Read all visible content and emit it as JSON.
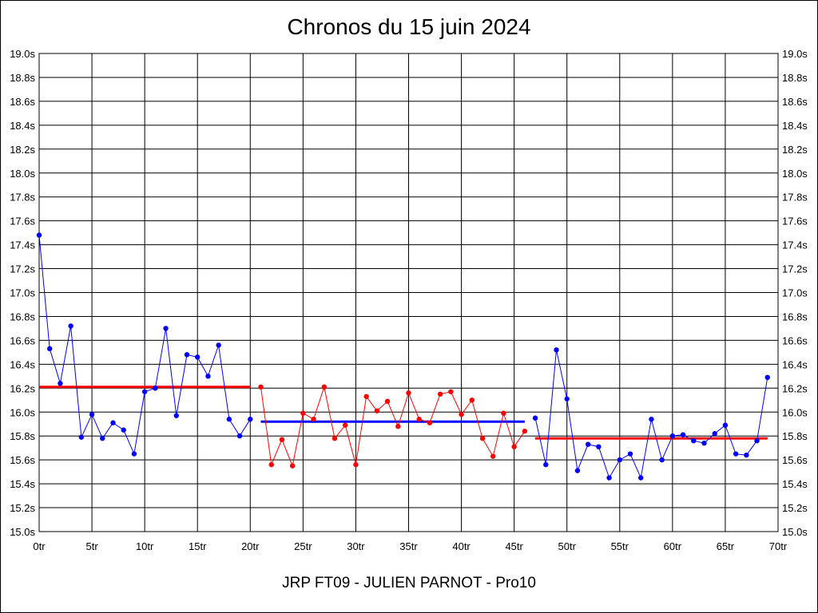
{
  "title": "Chronos du 15 juin 2024",
  "footer": "JRP FT09 - JULIEN PARNOT - Pro10",
  "chart_data": {
    "type": "line",
    "title": "Chronos du 15 juin 2024",
    "xlabel": "",
    "ylabel": "",
    "xlim": [
      0,
      70
    ],
    "ylim": [
      15.0,
      19.0
    ],
    "grid": true,
    "x_ticks": [
      "0tr",
      "5tr",
      "10tr",
      "15tr",
      "20tr",
      "25tr",
      "30tr",
      "35tr",
      "40tr",
      "45tr",
      "50tr",
      "55tr",
      "60tr",
      "65tr",
      "70tr"
    ],
    "y_ticks": [
      "15.0s",
      "15.2s",
      "15.4s",
      "15.6s",
      "15.8s",
      "16.0s",
      "16.2s",
      "16.4s",
      "16.6s",
      "16.8s",
      "17.0s",
      "17.2s",
      "17.4s",
      "17.6s",
      "17.8s",
      "18.0s",
      "18.2s",
      "18.4s",
      "18.6s",
      "18.8s",
      "19.0s"
    ],
    "series": [
      {
        "color": "#0000ff",
        "x": [
          0,
          1,
          2,
          3,
          4,
          5,
          6,
          7,
          8,
          9,
          10,
          11,
          12,
          13,
          14,
          15,
          16,
          17,
          18,
          19,
          20
        ],
        "values": [
          17.48,
          16.53,
          16.24,
          16.72,
          15.79,
          15.98,
          15.78,
          15.91,
          15.85,
          15.65,
          16.17,
          16.2,
          16.7,
          15.97,
          16.48,
          16.46,
          16.3,
          16.56,
          15.94,
          15.8,
          15.94
        ]
      },
      {
        "color": "#ff0000",
        "x": [
          21,
          22,
          23,
          24,
          25,
          26,
          27,
          28,
          29,
          30,
          31,
          32,
          33,
          34,
          35,
          36,
          37,
          38,
          39,
          40,
          41,
          42,
          43,
          44,
          45,
          46
        ],
        "values": [
          16.21,
          15.56,
          15.77,
          15.55,
          15.99,
          15.94,
          16.21,
          15.78,
          15.89,
          15.56,
          16.13,
          16.01,
          16.09,
          15.88,
          16.16,
          15.94,
          15.91,
          16.15,
          16.17,
          15.98,
          16.1,
          15.78,
          15.63,
          15.99,
          15.71,
          15.84
        ]
      },
      {
        "color": "#0000ff",
        "x": [
          47,
          48,
          49,
          50,
          51,
          52,
          53,
          54,
          55,
          56,
          57,
          58,
          59,
          60,
          61,
          62,
          63,
          64,
          65,
          66,
          67,
          68,
          69
        ],
        "values": [
          15.95,
          15.56,
          16.52,
          16.11,
          15.51,
          15.73,
          15.71,
          15.45,
          15.6,
          15.65,
          15.45,
          15.94,
          15.6,
          15.8,
          15.81,
          15.76,
          15.74,
          15.82,
          15.89,
          15.65,
          15.64,
          15.76,
          16.29
        ]
      }
    ],
    "mean_lines": [
      {
        "x": [
          0,
          20
        ],
        "value": 16.21,
        "color": "#ff0000"
      },
      {
        "x": [
          21,
          46
        ],
        "value": 15.92,
        "color": "#0000ff"
      },
      {
        "x": [
          47,
          69
        ],
        "value": 15.78,
        "color": "#ff0000"
      }
    ]
  }
}
